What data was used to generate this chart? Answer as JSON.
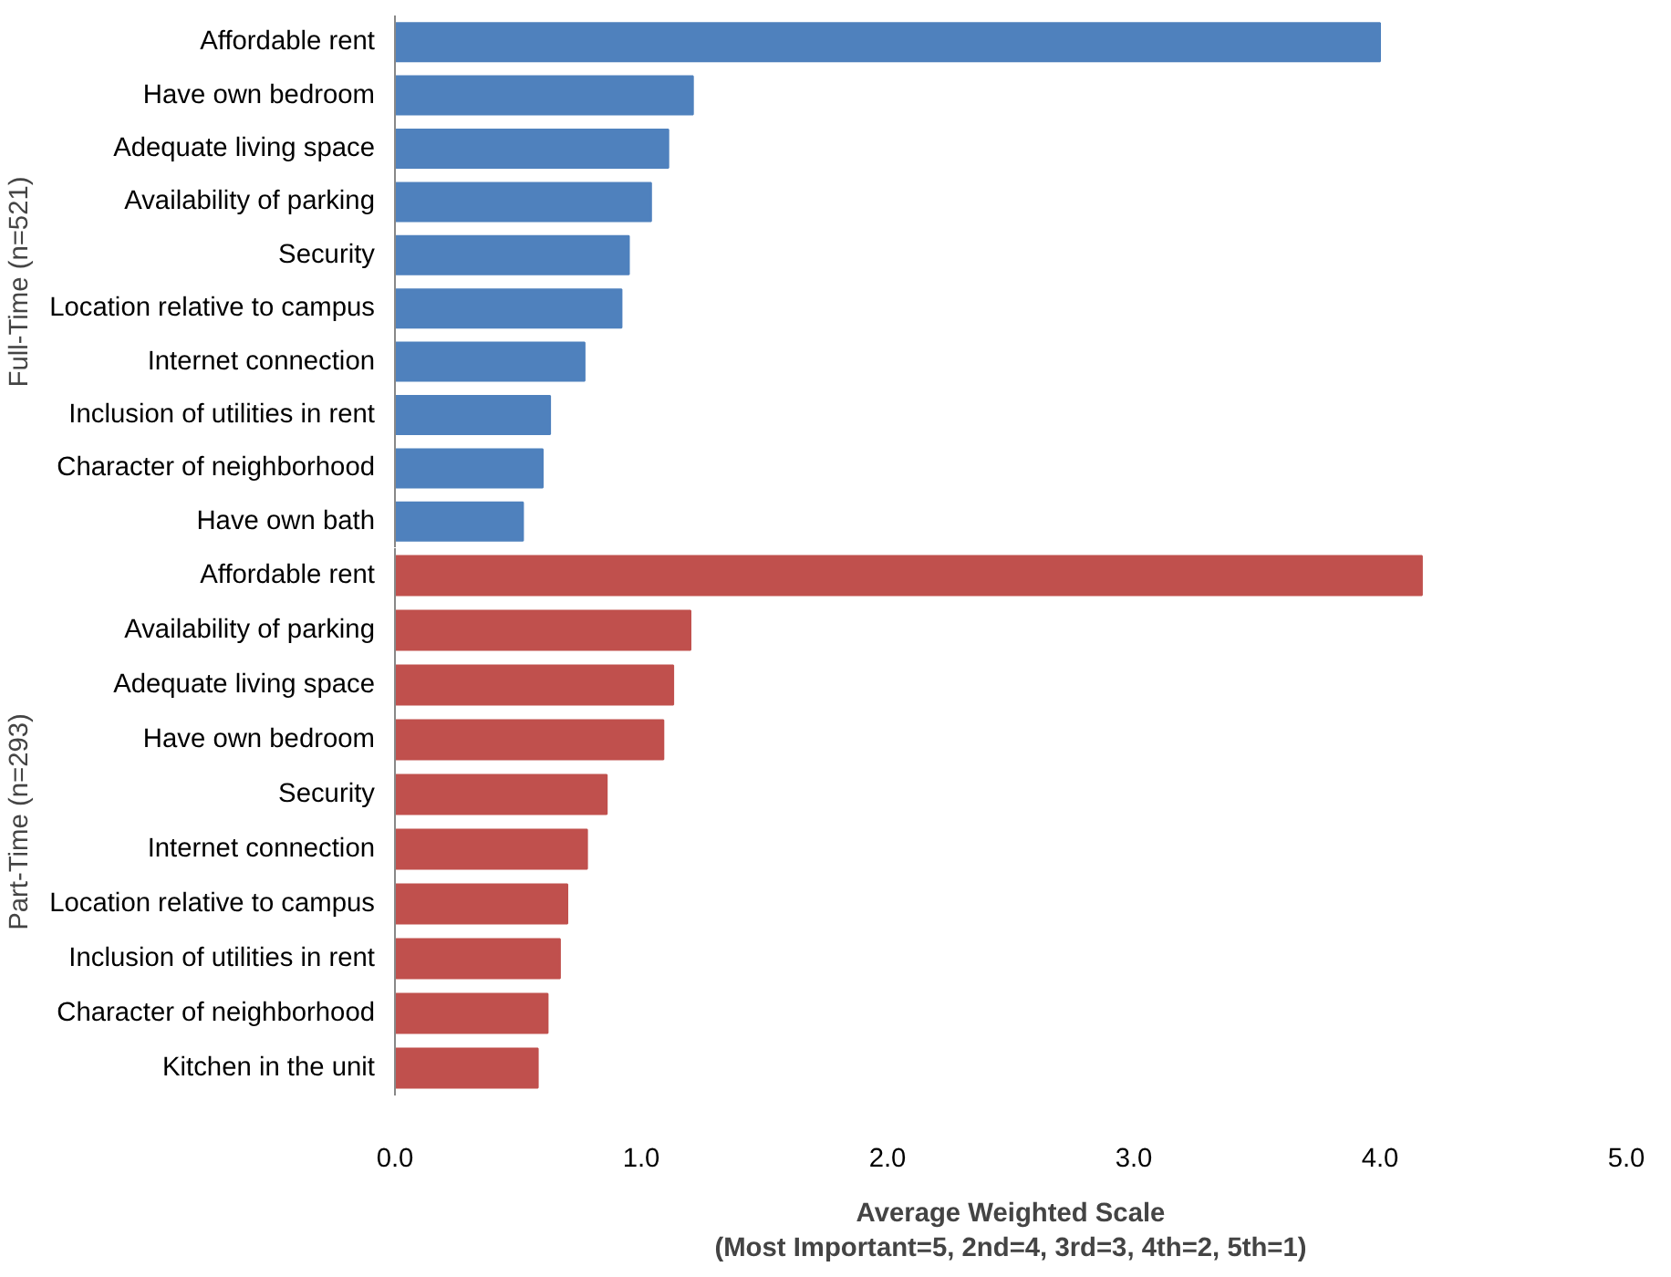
{
  "chart_data": [
    {
      "type": "bar",
      "orientation": "horizontal",
      "ylabel": "Full-Time (n=521)",
      "categories": [
        "Affordable rent",
        "Have own bedroom",
        "Adequate living space",
        "Availability of parking",
        "Security",
        "Location relative to campus",
        "Internet connection",
        "Inclusion of utilities in rent",
        "Character of neighborhood",
        "Have own bath"
      ],
      "values": [
        4.0,
        1.21,
        1.11,
        1.04,
        0.95,
        0.92,
        0.77,
        0.63,
        0.6,
        0.52
      ],
      "color": "#4f81bd",
      "xlim": [
        0,
        5
      ],
      "tick_labels": "y",
      "grid": false
    },
    {
      "type": "bar",
      "orientation": "horizontal",
      "ylabel": "Part-Time (n=293)",
      "xlabel": "Average Weighted Scale\n(Most Important=5, 2nd=4, 3rd=3, 4th=2, 5th=1)",
      "categories": [
        "Affordable rent",
        "Availability of parking",
        "Adequate living space",
        "Have own bedroom",
        "Security",
        "Internet connection",
        "Location relative to campus",
        "Inclusion of utilities in rent",
        "Character of neighborhood",
        "Kitchen in the unit"
      ],
      "values": [
        4.17,
        1.2,
        1.13,
        1.09,
        0.86,
        0.78,
        0.7,
        0.67,
        0.62,
        0.58
      ],
      "color": "#c0504d",
      "xlim": [
        0,
        5
      ],
      "xticks": [
        {
          "value": 0,
          "label": "0.0"
        },
        {
          "value": 1,
          "label": "1.0"
        },
        {
          "value": 2,
          "label": "2.0"
        },
        {
          "value": 3,
          "label": "3.0"
        },
        {
          "value": 4,
          "label": "4.0"
        },
        {
          "value": 5,
          "label": "5.0"
        }
      ],
      "grid": false
    }
  ]
}
